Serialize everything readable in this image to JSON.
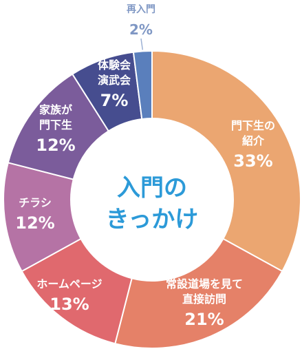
{
  "chart_data": {
    "type": "pie",
    "donut": true,
    "title": "入門のきっかけ",
    "title_lines": [
      "入門の",
      "きっかけ"
    ],
    "start": "top",
    "direction": "clockwise",
    "legend": "none",
    "slices": [
      {
        "name_lines": [
          "門下生の",
          "紹介"
        ],
        "value": 33,
        "label": "33%",
        "color": "#eba671"
      },
      {
        "name_lines": [
          "常設道場を見て",
          "直接訪問"
        ],
        "value": 21,
        "label": "21%",
        "color": "#e58168"
      },
      {
        "name_lines": [
          "ホームページ"
        ],
        "value": 13,
        "label": "13%",
        "color": "#e0696e"
      },
      {
        "name_lines": [
          "チラシ"
        ],
        "value": 12,
        "label": "12%",
        "color": "#b573a5"
      },
      {
        "name_lines": [
          "家族が",
          "門下生"
        ],
        "value": 12,
        "label": "12%",
        "color": "#7b5c9b"
      },
      {
        "name_lines": [
          "体験会",
          "演武会"
        ],
        "value": 7,
        "label": "7%",
        "color": "#464d8f"
      },
      {
        "name_lines": [
          "再入門"
        ],
        "value": 2,
        "label": "2%",
        "color": "#5a7fbc"
      }
    ]
  }
}
